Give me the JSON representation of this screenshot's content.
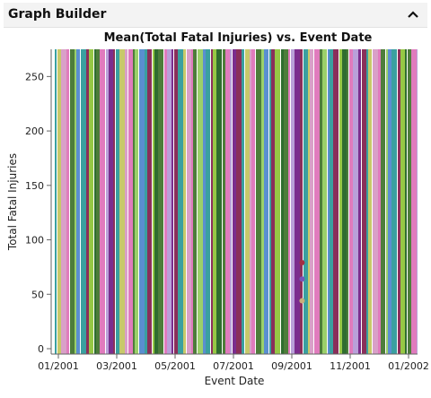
{
  "panel": {
    "title": "Graph Builder",
    "collapse_icon": "chevron-up-icon"
  },
  "chart_data": {
    "type": "bar",
    "title": "Mean(Total Fatal Injuries) vs. Event Date",
    "xlabel": "Event Date",
    "ylabel": "Total Fatal Injuries",
    "xlim": [
      "2001-01-01",
      "2002-01-01"
    ],
    "ylim": [
      0,
      275
    ],
    "x_ticks": [
      "01/2001",
      "03/2001",
      "05/2001",
      "07/2001",
      "09/2001",
      "11/2001",
      "01/2002"
    ],
    "y_ticks": [
      0,
      50,
      100,
      150,
      200,
      250
    ],
    "grid": false,
    "legend": "none",
    "bars_note": "dense full-height colored bars across the date range",
    "bar_colors": [
      "#3aa0a0",
      "#7b2d8e",
      "#9bd06a",
      "#e07bbd",
      "#2f6d2f",
      "#c7c96a",
      "#8a2f5a",
      "#5a8fd0",
      "#b9a0d9",
      "#4d7d3a",
      "#d9a0c8",
      "#96c845"
    ],
    "points": [
      {
        "x": "2001-09-12",
        "y": 79,
        "color": "#a33043"
      },
      {
        "x": "2001-09-12",
        "y": 64,
        "color": "#7755b8"
      },
      {
        "x": "2001-09-12",
        "y": 44,
        "color": "#c9b07a"
      }
    ]
  }
}
